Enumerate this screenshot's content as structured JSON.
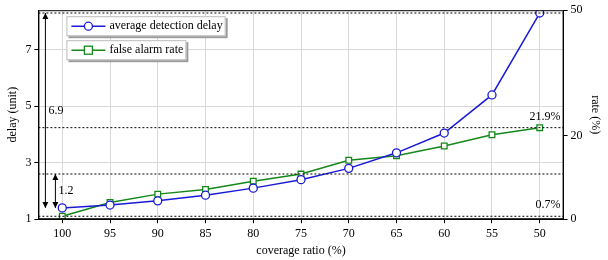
{
  "chart_data": {
    "type": "line",
    "x_label": "coverage ratio (%)",
    "y_label": "delay (unit)",
    "y2_label": "rate (%)",
    "categories": [
      100,
      95,
      90,
      85,
      80,
      75,
      70,
      65,
      60,
      55,
      50
    ],
    "series": [
      {
        "name": "average detection delay",
        "color": "#1a1ad6",
        "marker": "circle",
        "line_style": "solid",
        "values": [
          1.4,
          1.5,
          1.65,
          1.85,
          2.1,
          2.4,
          2.8,
          3.35,
          4.05,
          5.4,
          8.3
        ]
      },
      {
        "name": "false alarm rate",
        "color": "#15881a",
        "marker": "square",
        "line_style": "solid",
        "axis": "y2",
        "values": [
          0.7,
          4,
          6,
          7.1,
          9.1,
          10.8,
          14.1,
          15.2,
          17.5,
          20.2,
          21.9
        ]
      }
    ],
    "ylim": [
      1,
      8.4
    ],
    "yticks": [
      1,
      3,
      5,
      7
    ],
    "y2lim": [
      0,
      50
    ],
    "y2ticks": [
      0,
      20,
      50
    ],
    "grid": true,
    "legend": "upper left",
    "annotations": [
      {
        "label": "6.9",
        "axis": "y",
        "from": 1.4,
        "to": 8.3
      },
      {
        "label": "1.2",
        "axis": "y",
        "from": 1.4,
        "to": 2.6
      },
      {
        "label": "21.9%",
        "axis": "y2",
        "value": 21.9
      },
      {
        "label": "0.7%",
        "axis": "y2",
        "value": 0.7
      }
    ]
  }
}
